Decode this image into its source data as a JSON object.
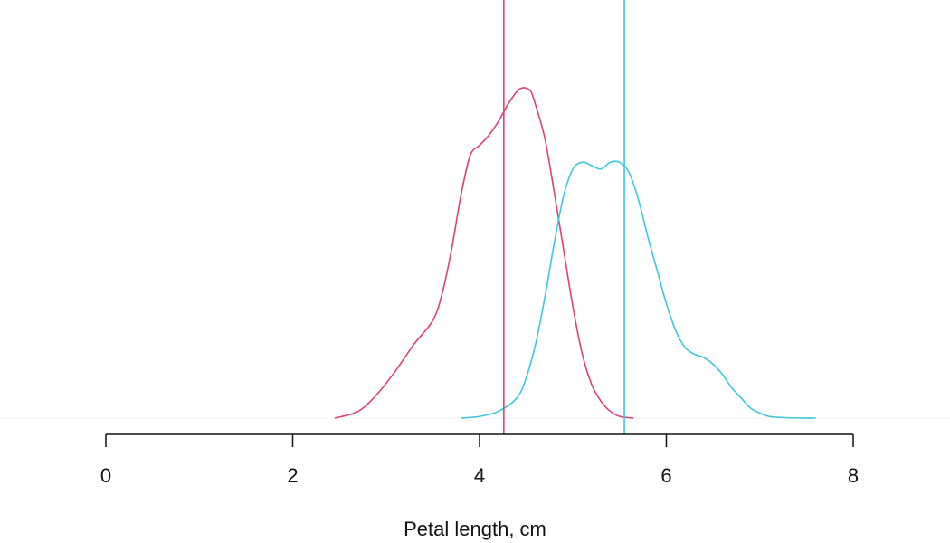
{
  "chart_data": {
    "type": "line",
    "xlabel": "Petal length, cm",
    "ylabel": "",
    "xlim": [
      0,
      8
    ],
    "xticks": [
      0,
      2,
      4,
      6,
      8
    ],
    "ylim": [
      0,
      1.0
    ],
    "grid": false,
    "legend": "none",
    "series": [
      {
        "color": "#dd3f78",
        "mean": 4.26,
        "x": [
          2.45,
          2.7,
          2.9,
          3.1,
          3.3,
          3.5,
          3.6,
          3.7,
          3.8,
          3.9,
          4.0,
          4.1,
          4.2,
          4.3,
          4.4,
          4.45,
          4.5,
          4.55,
          4.6,
          4.7,
          4.8,
          4.9,
          5.0,
          5.1,
          5.2,
          5.3,
          5.4,
          5.5,
          5.65
        ],
        "y": [
          0.0,
          0.02,
          0.07,
          0.14,
          0.22,
          0.29,
          0.37,
          0.5,
          0.66,
          0.78,
          0.81,
          0.84,
          0.88,
          0.93,
          0.97,
          0.98,
          0.98,
          0.97,
          0.93,
          0.83,
          0.67,
          0.5,
          0.33,
          0.19,
          0.1,
          0.05,
          0.02,
          0.005,
          0.0
        ]
      },
      {
        "color": "#3dc8dc",
        "mean": 5.55,
        "x": [
          3.8,
          4.0,
          4.2,
          4.4,
          4.5,
          4.6,
          4.7,
          4.8,
          4.9,
          5.0,
          5.1,
          5.2,
          5.3,
          5.4,
          5.5,
          5.6,
          5.7,
          5.8,
          5.9,
          6.0,
          6.1,
          6.2,
          6.3,
          6.4,
          6.5,
          6.6,
          6.7,
          6.8,
          6.9,
          7.0,
          7.1,
          7.3,
          7.6
        ],
        "y": [
          0.0,
          0.005,
          0.02,
          0.06,
          0.12,
          0.22,
          0.36,
          0.52,
          0.66,
          0.74,
          0.76,
          0.75,
          0.74,
          0.76,
          0.76,
          0.73,
          0.65,
          0.54,
          0.44,
          0.34,
          0.26,
          0.21,
          0.19,
          0.18,
          0.16,
          0.13,
          0.09,
          0.06,
          0.03,
          0.015,
          0.005,
          0.001,
          0.0
        ]
      }
    ]
  }
}
